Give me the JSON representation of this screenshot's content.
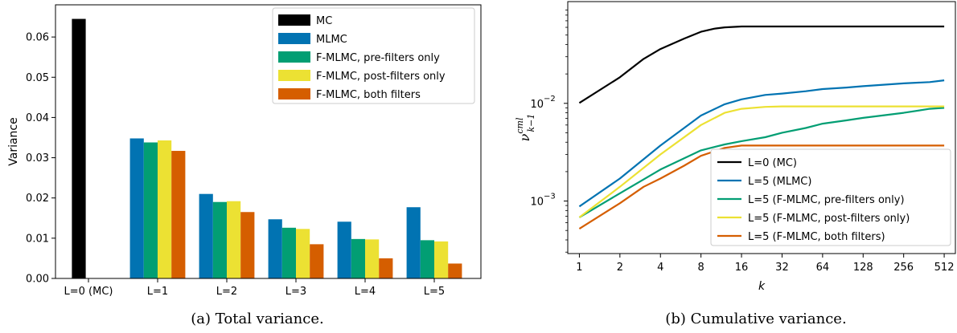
{
  "chart_data": [
    {
      "type": "bar",
      "ylabel": "Variance",
      "xlabel": "",
      "ylim": [
        0,
        0.068
      ],
      "yticks": [
        "0.00",
        "0.01",
        "0.02",
        "0.03",
        "0.04",
        "0.05",
        "0.06"
      ],
      "categories": [
        "L=0 (MC)",
        "L=1",
        "L=2",
        "L=3",
        "L=4",
        "L=5"
      ],
      "legend_position": "top-right",
      "series": [
        {
          "name": "MC",
          "color": "#000000",
          "values": [
            0.0645,
            null,
            null,
            null,
            null,
            null
          ]
        },
        {
          "name": "MLMC",
          "color": "#0173b2",
          "values": [
            null,
            0.0348,
            0.021,
            0.0147,
            0.0141,
            0.0177
          ]
        },
        {
          "name": "F-MLMC, pre-filters only",
          "color": "#029e73",
          "values": [
            null,
            0.0338,
            0.019,
            0.0126,
            0.0098,
            0.0095
          ]
        },
        {
          "name": "F-MLMC, post-filters only",
          "color": "#ece133",
          "values": [
            null,
            0.0343,
            0.0192,
            0.0123,
            0.0097,
            0.0092
          ]
        },
        {
          "name": "F-MLMC, both filters",
          "color": "#d55e00",
          "values": [
            null,
            0.0317,
            0.0165,
            0.0085,
            0.005,
            0.0037
          ]
        }
      ],
      "caption": "(a)  Total variance."
    },
    {
      "type": "line",
      "xlabel": "k",
      "ylabel": "ν^{cml}_{k−1}",
      "xscale": "log2",
      "yscale": "log10",
      "xlim": [
        0.82,
        620
      ],
      "ylim": [
        0.00029,
        0.11
      ],
      "xticks": [
        "1",
        "2",
        "4",
        "8",
        "16",
        "32",
        "64",
        "128",
        "256",
        "512"
      ],
      "yticks": [
        "10^-3",
        "10^-2"
      ],
      "legend_position": "bottom-right",
      "series": [
        {
          "name": "L=0 (MC)",
          "color": "#000000",
          "x": [
            1,
            2,
            3,
            4,
            6,
            8,
            10,
            12,
            16,
            32,
            64,
            128,
            256,
            512
          ],
          "y": [
            0.0101,
            0.0185,
            0.0285,
            0.036,
            0.046,
            0.054,
            0.058,
            0.06,
            0.0612,
            0.0612,
            0.0612,
            0.0612,
            0.0612,
            0.0612
          ]
        },
        {
          "name": "L=5 (MLMC)",
          "color": "#0173b2",
          "x": [
            1,
            2,
            4,
            8,
            12,
            16,
            24,
            32,
            48,
            64,
            96,
            128,
            256,
            400,
            512
          ],
          "y": [
            0.00088,
            0.0017,
            0.0037,
            0.0075,
            0.0098,
            0.011,
            0.0122,
            0.0126,
            0.0133,
            0.014,
            0.0145,
            0.015,
            0.016,
            0.0165,
            0.0172
          ]
        },
        {
          "name": "L=5 (F-MLMC, pre-filters only)",
          "color": "#029e73",
          "x": [
            1,
            2,
            4,
            8,
            12,
            16,
            24,
            32,
            48,
            64,
            96,
            128,
            256,
            400,
            512
          ],
          "y": [
            0.00068,
            0.0012,
            0.0021,
            0.0033,
            0.0038,
            0.0041,
            0.0045,
            0.005,
            0.0056,
            0.0062,
            0.0067,
            0.0071,
            0.008,
            0.0088,
            0.009
          ]
        },
        {
          "name": "L=5 (F-MLMC, post-filters only)",
          "color": "#ece133",
          "x": [
            1,
            2,
            4,
            8,
            12,
            16,
            24,
            32,
            64,
            128,
            256,
            512
          ],
          "y": [
            0.00068,
            0.0014,
            0.003,
            0.006,
            0.008,
            0.0088,
            0.0092,
            0.0093,
            0.0093,
            0.0093,
            0.0093,
            0.0093
          ]
        },
        {
          "name": "L=5 (F-MLMC, both filters)",
          "color": "#d55e00",
          "x": [
            1,
            2,
            3,
            4,
            6,
            8,
            12,
            16,
            24,
            32,
            64,
            128,
            256,
            512
          ],
          "y": [
            0.00052,
            0.00095,
            0.0014,
            0.0017,
            0.0023,
            0.0029,
            0.0035,
            0.0037,
            0.0037,
            0.0037,
            0.0037,
            0.0037,
            0.0037,
            0.0037
          ]
        }
      ],
      "caption": "(b)  Cumulative variance."
    }
  ]
}
